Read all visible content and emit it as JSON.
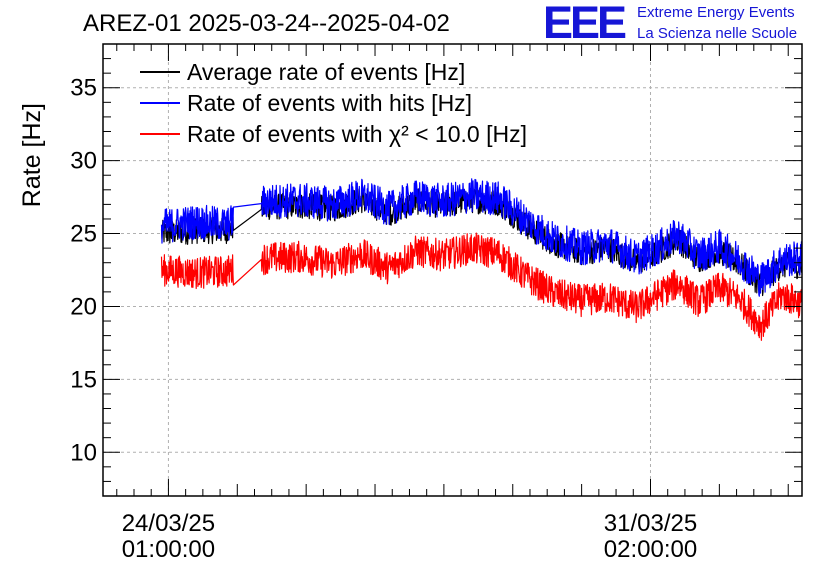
{
  "header": {
    "title": "AREZ-01 2025-03-24--2025-04-02",
    "logo_text": "EEE",
    "subtitle_line1": "Extreme Energy Events",
    "subtitle_line2": "La Scienza nelle Scuole"
  },
  "colors": {
    "average": "#000000",
    "hits": "#0000ff",
    "chi2": "#ff0000",
    "logo": "#1616d6"
  },
  "chart_data": {
    "type": "line",
    "title": "AREZ-01 2025-03-24--2025-04-02",
    "ylabel": "Rate [Hz]",
    "xlabel": "",
    "ylim": [
      7,
      38
    ],
    "xlim": [
      -0.95,
      9.2
    ],
    "yticks": [
      10,
      15,
      20,
      25,
      30,
      35
    ],
    "xticks": [
      {
        "x": 0,
        "line1": "24/03/25",
        "line2": "01:00:00"
      },
      {
        "x": 7,
        "line1": "31/03/25",
        "line2": "02:00:00"
      }
    ],
    "grid": true,
    "legend_position": "top-left",
    "x_units": "days from 24/03/25 01:00:00",
    "series": [
      {
        "name": "Average rate of events [Hz]",
        "color": "#000000",
        "x": [
          -0.1,
          0.4,
          0.85,
          1.4,
          1.9,
          2.4,
          2.8,
          3.2,
          3.6,
          4.0,
          4.4,
          4.8,
          5.2,
          5.6,
          6.0,
          6.4,
          6.8,
          7.1,
          7.4,
          7.7,
          8.0,
          8.3,
          8.6,
          8.9,
          9.2
        ],
        "values": [
          25.0,
          25.2,
          25.2,
          26.8,
          26.9,
          26.7,
          27.3,
          26.4,
          27.2,
          26.9,
          27.3,
          27.1,
          25.5,
          24.3,
          23.7,
          24.0,
          23.0,
          23.7,
          24.6,
          23.2,
          23.8,
          22.9,
          21.5,
          22.8,
          22.8
        ]
      },
      {
        "name": "Rate of events with hits [Hz]",
        "color": "#0000ff",
        "x": [
          -0.1,
          0.4,
          0.85,
          1.4,
          1.9,
          2.4,
          2.8,
          3.2,
          3.6,
          4.0,
          4.4,
          4.8,
          5.2,
          5.6,
          6.0,
          6.4,
          6.8,
          7.1,
          7.4,
          7.7,
          8.0,
          8.3,
          8.6,
          8.9,
          9.2
        ],
        "values": [
          25.5,
          25.8,
          25.6,
          27.2,
          27.3,
          27.0,
          27.6,
          26.7,
          27.5,
          27.2,
          27.6,
          27.4,
          25.9,
          24.6,
          24.0,
          24.3,
          23.3,
          24.0,
          24.9,
          23.5,
          24.1,
          23.2,
          21.8,
          23.2,
          23.3
        ]
      },
      {
        "name": "Rate of events with χ² < 10.0 [Hz]",
        "color": "#ff0000",
        "x": [
          -0.1,
          0.4,
          0.85,
          1.4,
          1.9,
          2.4,
          2.8,
          3.2,
          3.6,
          4.0,
          4.4,
          4.8,
          5.2,
          5.6,
          6.0,
          6.4,
          6.8,
          7.1,
          7.4,
          7.7,
          8.0,
          8.3,
          8.6,
          8.9,
          9.2
        ],
        "values": [
          22.5,
          22.3,
          22.4,
          23.3,
          23.4,
          22.9,
          23.6,
          22.6,
          23.8,
          23.5,
          24.0,
          23.6,
          22.0,
          20.9,
          20.4,
          20.6,
          19.9,
          20.8,
          21.6,
          20.3,
          21.3,
          20.5,
          18.7,
          20.8,
          20.2
        ]
      }
    ],
    "legend": [
      {
        "label": "Average rate of events [Hz]",
        "color": "#000000"
      },
      {
        "label": "Rate of events with hits [Hz]",
        "color": "#0000ff"
      },
      {
        "label": "Rate of events with χ² < 10.0 [Hz]",
        "color": "#ff0000"
      }
    ]
  }
}
